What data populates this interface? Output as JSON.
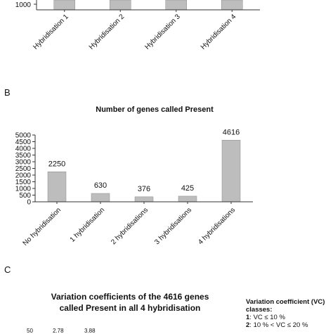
{
  "panel_a": {
    "tick_label": "1000",
    "categories": [
      "Hybridisation 1",
      "Hybridisation 2",
      "Hybridisation 3",
      "Hybridisation 4"
    ]
  },
  "panel_b": {
    "letter": "B",
    "title": "Number of genes called Present"
  },
  "panel_c": {
    "letter": "C",
    "title_line1": "Variation coefficients of the 4616 genes",
    "title_line2": "called Present in all 4 hybridisation",
    "legend_heading_line1": "Variation coefficient (VC)",
    "legend_heading_line2": "classes:",
    "legend_items": [
      {
        "num": "1",
        "text": ": VC ≤ 10 %"
      },
      {
        "num": "2",
        "text": ": 10 % < VC ≤ 20 %"
      }
    ],
    "partial_tick": "50",
    "partial_labels": [
      "2.78",
      "3.88"
    ]
  },
  "colors": {
    "bar_fill": "#bdbdbd",
    "bar_stroke": "#8c8c8c",
    "axis": "#333333"
  },
  "chart_data": [
    {
      "type": "bar",
      "title": "",
      "categories": [
        "Hybridisation 1",
        "Hybridisation 2",
        "Hybridisation 3",
        "Hybridisation 4"
      ],
      "values": [
        null,
        null,
        null,
        null
      ],
      "yticks": [
        "1000"
      ]
    },
    {
      "type": "bar",
      "title": "Number of genes called Present",
      "categories": [
        "No hybridisation",
        "1 hybridisation",
        "2 hybridisations",
        "3 hybridisations",
        "4 hybridisations"
      ],
      "values": [
        2250,
        630,
        376,
        425,
        4616
      ],
      "data_labels": [
        "2250",
        "630",
        "376",
        "425",
        "4616"
      ],
      "ylim": [
        0,
        5000
      ],
      "yticks": [
        0,
        500,
        1000,
        1500,
        2000,
        2500,
        3000,
        3500,
        4000,
        4500,
        5000
      ],
      "grid": false,
      "legend": "none"
    }
  ]
}
